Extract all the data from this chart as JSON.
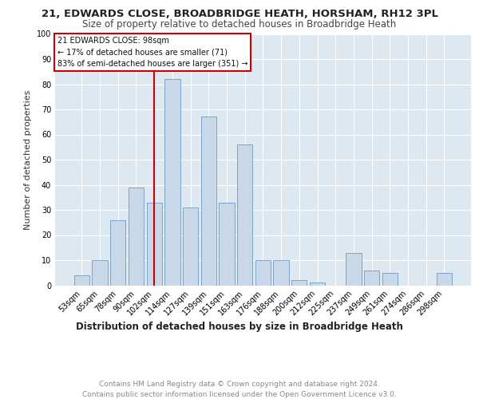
{
  "title1": "21, EDWARDS CLOSE, BROADBRIDGE HEATH, HORSHAM, RH12 3PL",
  "title2": "Size of property relative to detached houses in Broadbridge Heath",
  "xlabel": "Distribution of detached houses by size in Broadbridge Heath",
  "ylabel": "Number of detached properties",
  "categories": [
    "53sqm",
    "65sqm",
    "78sqm",
    "90sqm",
    "102sqm",
    "114sqm",
    "127sqm",
    "139sqm",
    "151sqm",
    "163sqm",
    "176sqm",
    "188sqm",
    "200sqm",
    "212sqm",
    "225sqm",
    "237sqm",
    "249sqm",
    "261sqm",
    "274sqm",
    "286sqm",
    "298sqm"
  ],
  "values": [
    4,
    10,
    26,
    39,
    33,
    82,
    31,
    67,
    33,
    56,
    10,
    10,
    2,
    1,
    0,
    13,
    6,
    5,
    0,
    0,
    5
  ],
  "bar_color": "#c8d8e8",
  "bar_edge_color": "#5b8db8",
  "annotation_line_x": "102sqm",
  "annotation_line_color": "#cc0000",
  "annotation_box_text": "21 EDWARDS CLOSE: 98sqm\n← 17% of detached houses are smaller (71)\n83% of semi-detached houses are larger (351) →",
  "annotation_box_color": "#cc0000",
  "footer_text": "Contains HM Land Registry data © Crown copyright and database right 2024.\nContains public sector information licensed under the Open Government Licence v3.0.",
  "ylim": [
    0,
    100
  ],
  "yticks": [
    0,
    10,
    20,
    30,
    40,
    50,
    60,
    70,
    80,
    90,
    100
  ],
  "background_color": "#dde8f0",
  "grid_color": "#ffffff",
  "title1_fontsize": 9.5,
  "title2_fontsize": 8.5,
  "axis_label_fontsize": 8,
  "tick_fontsize": 7,
  "footer_fontsize": 6.5
}
